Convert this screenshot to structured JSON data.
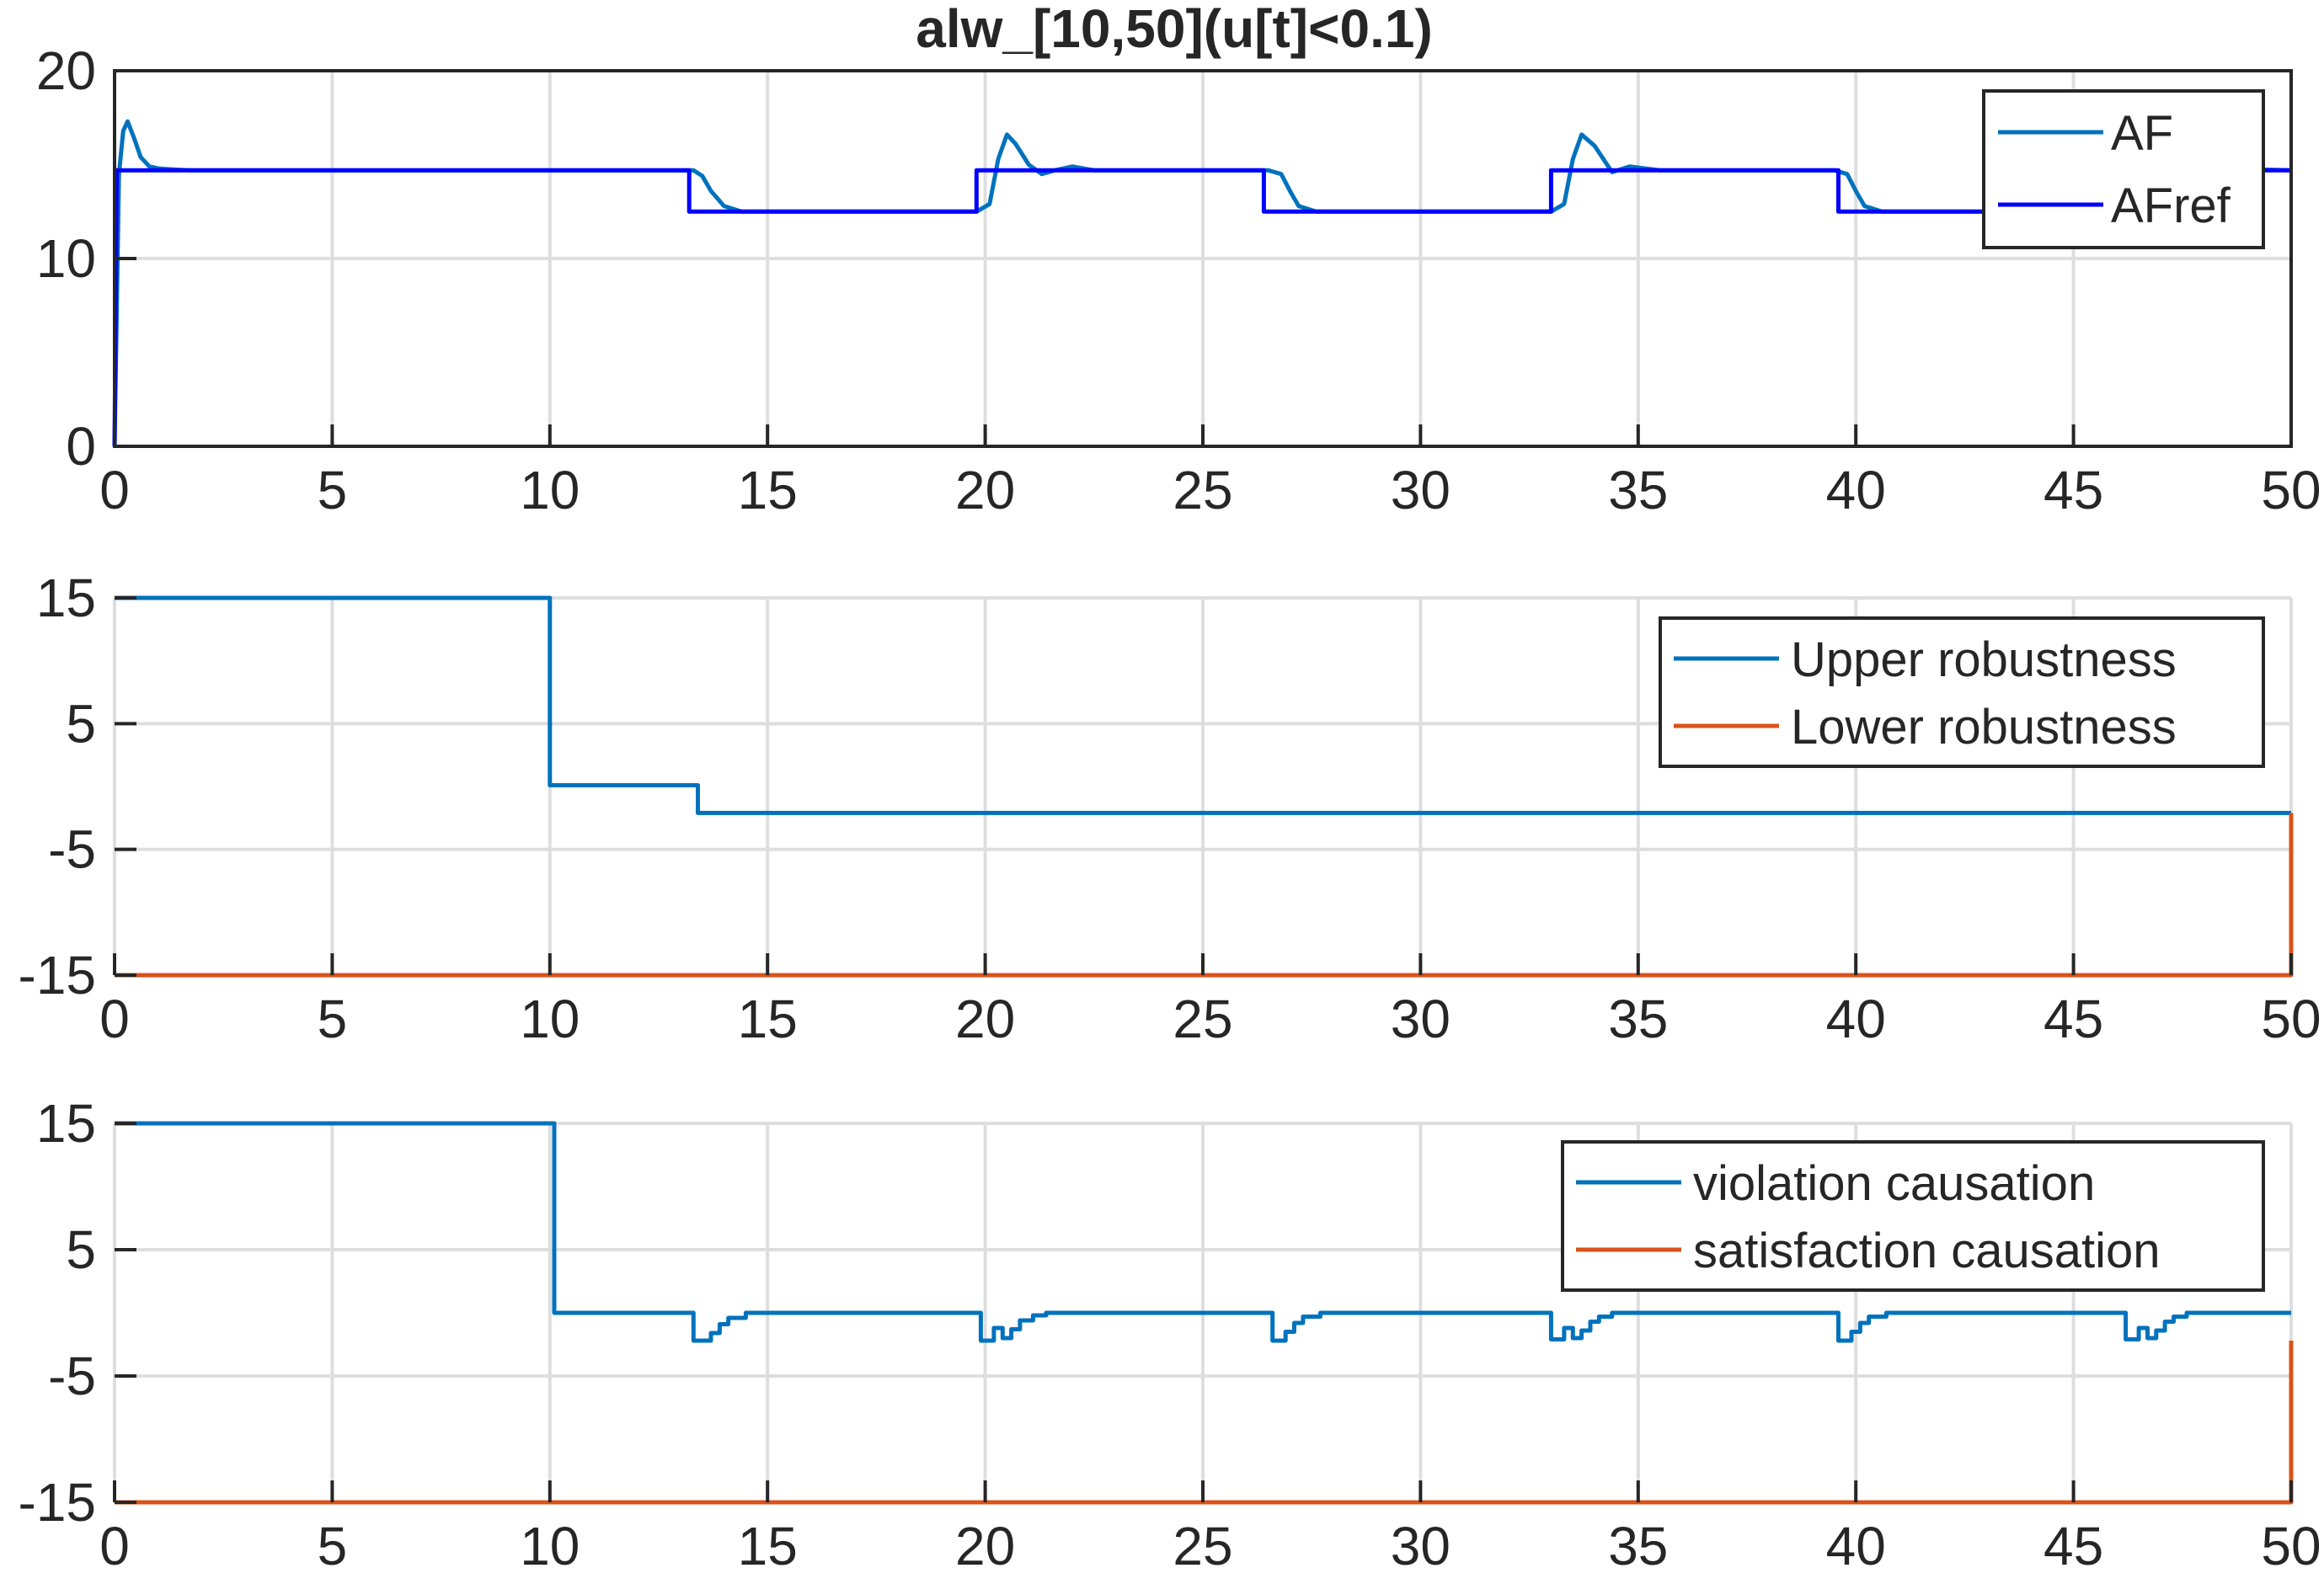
{
  "chart_data": [
    {
      "type": "line",
      "title": "alw_[10,50](u[t]<0.1)",
      "xlabel": "",
      "ylabel": "",
      "xlim": [
        0,
        50
      ],
      "ylim": [
        0,
        20
      ],
      "xticks": [
        0,
        5,
        10,
        15,
        20,
        25,
        30,
        35,
        40,
        45,
        50
      ],
      "yticks": [
        0,
        10,
        20
      ],
      "grid": true,
      "legend_position": "top-right",
      "series": [
        {
          "name": "AF",
          "color": "#0072BD",
          "x": [
            0,
            0.1,
            0.2,
            0.3,
            0.45,
            0.6,
            0.8,
            1.0,
            1.3,
            1.7,
            2.5,
            13.0,
            13.3,
            13.5,
            13.7,
            14.0,
            14.4,
            15.0,
            19.8,
            20.1,
            20.3,
            20.5,
            20.7,
            21.0,
            21.3,
            21.6,
            22.0,
            22.5,
            26.5,
            26.8,
            27.0,
            27.2,
            27.6,
            28.0,
            33.0,
            33.3,
            33.5,
            33.7,
            34.0,
            34.4,
            34.8,
            35.5,
            39.5,
            39.8,
            40.0,
            40.2,
            40.6,
            41.0,
            46.3,
            46.6,
            46.8,
            47.0,
            47.3,
            47.7,
            48.2,
            50
          ],
          "y": [
            0,
            14.5,
            16.8,
            17.3,
            16.4,
            15.4,
            14.9,
            14.8,
            14.75,
            14.7,
            14.7,
            14.7,
            14.7,
            14.4,
            13.6,
            12.8,
            12.5,
            12.5,
            12.5,
            12.9,
            15.3,
            16.6,
            16.1,
            15.0,
            14.5,
            14.7,
            14.9,
            14.7,
            14.7,
            14.5,
            13.6,
            12.8,
            12.5,
            12.5,
            12.5,
            12.9,
            15.3,
            16.6,
            16.0,
            14.6,
            14.9,
            14.7,
            14.7,
            14.5,
            13.6,
            12.8,
            12.5,
            12.5,
            12.5,
            12.9,
            15.3,
            16.5,
            16.0,
            14.6,
            14.8,
            14.7
          ]
        },
        {
          "name": "AFref",
          "color": "#0000FF",
          "x": [
            0,
            0.05,
            13.2,
            13.2,
            19.8,
            19.8,
            26.4,
            26.4,
            33.0,
            33.0,
            39.6,
            39.6,
            46.2,
            46.2,
            50
          ],
          "y": [
            0,
            14.7,
            14.7,
            12.5,
            12.5,
            14.7,
            14.7,
            12.5,
            12.5,
            14.7,
            14.7,
            12.5,
            12.5,
            14.7,
            14.7
          ]
        }
      ]
    },
    {
      "type": "line",
      "title": "",
      "xlabel": "",
      "ylabel": "",
      "xlim": [
        0,
        50
      ],
      "ylim": [
        -15,
        15
      ],
      "xticks": [
        0,
        5,
        10,
        15,
        20,
        25,
        30,
        35,
        40,
        45,
        50
      ],
      "yticks": [
        -15,
        -5,
        5,
        15
      ],
      "grid": true,
      "legend_position": "top-right",
      "series": [
        {
          "name": "Upper robustness",
          "color": "#0072BD",
          "x": [
            0,
            10,
            10,
            13.4,
            13.4,
            50
          ],
          "y": [
            15,
            15,
            0.1,
            0.1,
            -2.1,
            -2.1
          ]
        },
        {
          "name": "Lower robustness",
          "color": "#D95319",
          "x": [
            0,
            50,
            50
          ],
          "y": [
            -15,
            -15,
            -2.1
          ]
        }
      ]
    },
    {
      "type": "line",
      "title": "",
      "xlabel": "",
      "ylabel": "",
      "xlim": [
        0,
        50
      ],
      "ylim": [
        -15,
        15
      ],
      "xticks": [
        0,
        5,
        10,
        15,
        20,
        25,
        30,
        35,
        40,
        45,
        50
      ],
      "yticks": [
        -15,
        -5,
        5,
        15
      ],
      "grid": true,
      "legend_position": "top-right",
      "series": [
        {
          "name": "violation causation",
          "color": "#0072BD",
          "x": [
            0,
            10.1,
            10.1,
            13.3,
            13.3,
            13.7,
            13.7,
            13.9,
            13.9,
            14.1,
            14.1,
            14.5,
            14.5,
            19.9,
            19.9,
            20.2,
            20.2,
            20.4,
            20.4,
            20.6,
            20.6,
            20.8,
            20.8,
            21.1,
            21.1,
            21.4,
            21.4,
            26.6,
            26.6,
            26.9,
            26.9,
            27.1,
            27.1,
            27.3,
            27.3,
            27.7,
            27.7,
            33.0,
            33.0,
            33.3,
            33.3,
            33.5,
            33.5,
            33.7,
            33.7,
            33.9,
            33.9,
            34.1,
            34.1,
            34.4,
            34.4,
            39.6,
            39.6,
            39.9,
            39.9,
            40.1,
            40.1,
            40.3,
            40.3,
            40.7,
            40.7,
            46.2,
            46.2,
            46.5,
            46.5,
            46.7,
            46.7,
            46.9,
            46.9,
            47.1,
            47.1,
            47.3,
            47.3,
            47.6,
            47.6,
            50
          ],
          "y": [
            15,
            15,
            0,
            0,
            -2.2,
            -2.2,
            -1.6,
            -1.6,
            -0.9,
            -0.9,
            -0.4,
            -0.4,
            0,
            0,
            -2.2,
            -2.2,
            -1.2,
            -1.2,
            -2.0,
            -2.0,
            -1.3,
            -1.3,
            -0.6,
            -0.6,
            -0.2,
            -0.2,
            0,
            0,
            -2.2,
            -2.2,
            -1.5,
            -1.5,
            -0.8,
            -0.8,
            -0.3,
            -0.3,
            0,
            0,
            -2.1,
            -2.1,
            -1.2,
            -1.2,
            -2.0,
            -2.0,
            -1.4,
            -1.4,
            -0.7,
            -0.7,
            -0.3,
            -0.3,
            0,
            0,
            -2.2,
            -2.2,
            -1.5,
            -1.5,
            -0.8,
            -0.8,
            -0.3,
            -0.3,
            0,
            0,
            -2.1,
            -2.1,
            -1.2,
            -1.2,
            -2.0,
            -2.0,
            -1.4,
            -1.4,
            -0.7,
            -0.7,
            -0.3,
            -0.3,
            0,
            0
          ]
        },
        {
          "name": "satisfaction causation",
          "color": "#D95319",
          "x": [
            0,
            50,
            50
          ],
          "y": [
            -15,
            -15,
            -2.2
          ]
        }
      ]
    }
  ]
}
